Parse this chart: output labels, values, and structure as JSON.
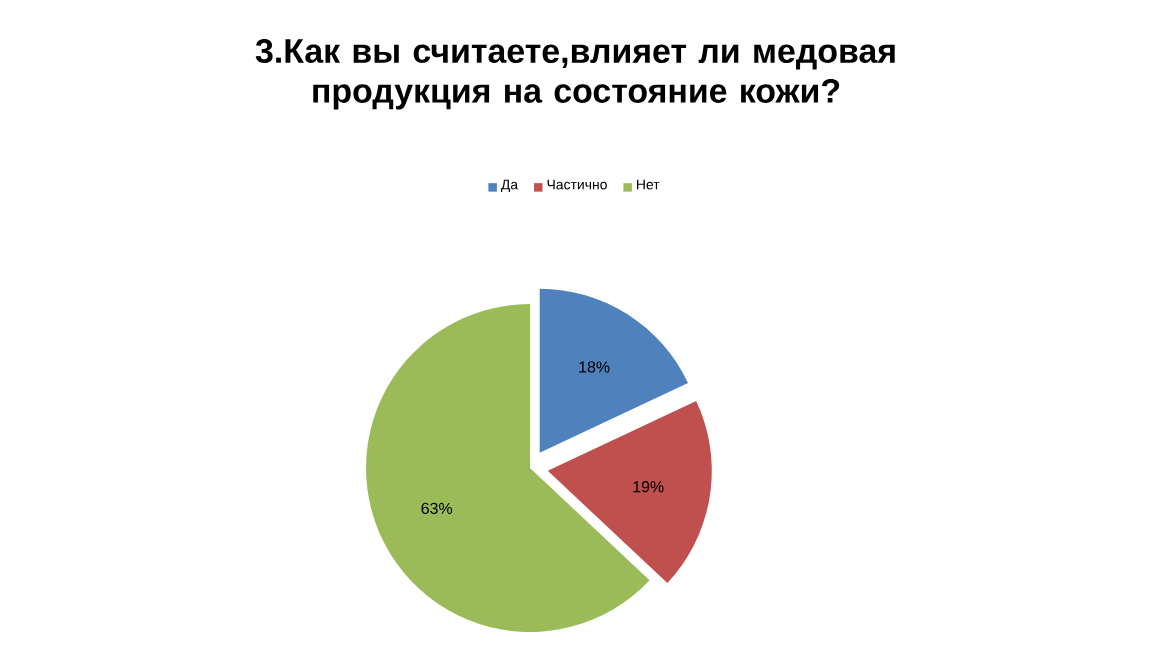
{
  "chart_data": {
    "type": "pie",
    "title": "3.Как вы считаете,влияет ли медовая продукция на состояние кожи?",
    "categories": [
      "Да",
      "Частично",
      "Нет"
    ],
    "values": [
      18,
      19,
      63
    ],
    "value_labels": [
      "18%",
      "19%",
      "63%"
    ],
    "colors": [
      "#4f81bd",
      "#c0504d",
      "#9bbb59"
    ],
    "legend": "top"
  }
}
